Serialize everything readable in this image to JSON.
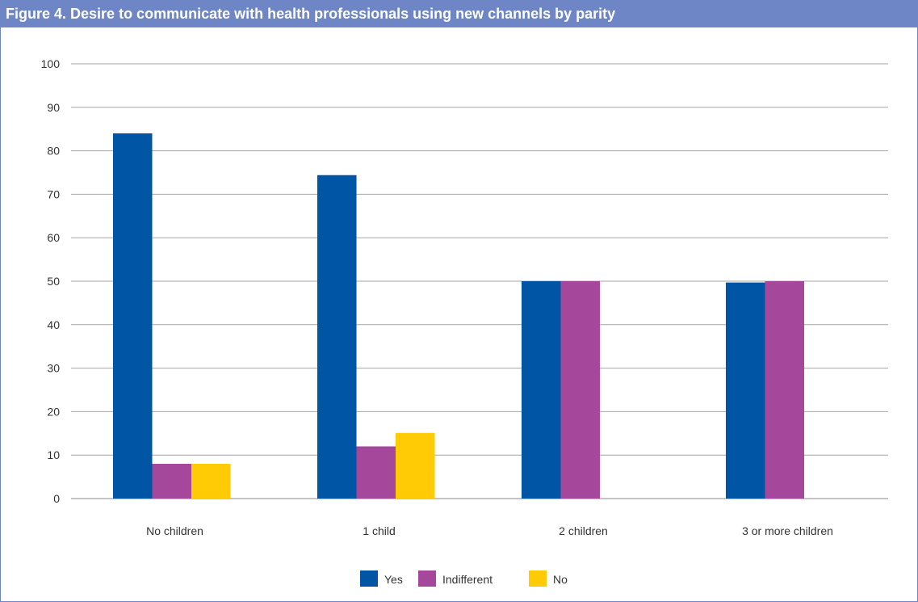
{
  "header": {
    "figure_label": "Figure 4.",
    "title": "Desire to communicate with health professionals using new channels by parity"
  },
  "chart_data": {
    "type": "bar",
    "title": "Desire to communicate with health professionals using new channels by parity",
    "xlabel": "",
    "ylabel": "",
    "categories": [
      "No children",
      "1 child",
      "2 children",
      "3 or more children"
    ],
    "series": [
      {
        "name": "Yes",
        "color": "#0055a5",
        "values": [
          84,
          74.4,
          50,
          49.7
        ]
      },
      {
        "name": "Indifferent",
        "color": "#a5479b",
        "values": [
          8,
          12,
          50,
          50
        ]
      },
      {
        "name": "No",
        "color": "#ffcb05",
        "values": [
          8,
          15.1,
          0,
          0
        ]
      }
    ],
    "ylim": [
      0,
      100
    ],
    "yticks": [
      0,
      10,
      20,
      30,
      40,
      50,
      60,
      70,
      80,
      90,
      100
    ],
    "grid": true,
    "legend_position": "bottom"
  }
}
